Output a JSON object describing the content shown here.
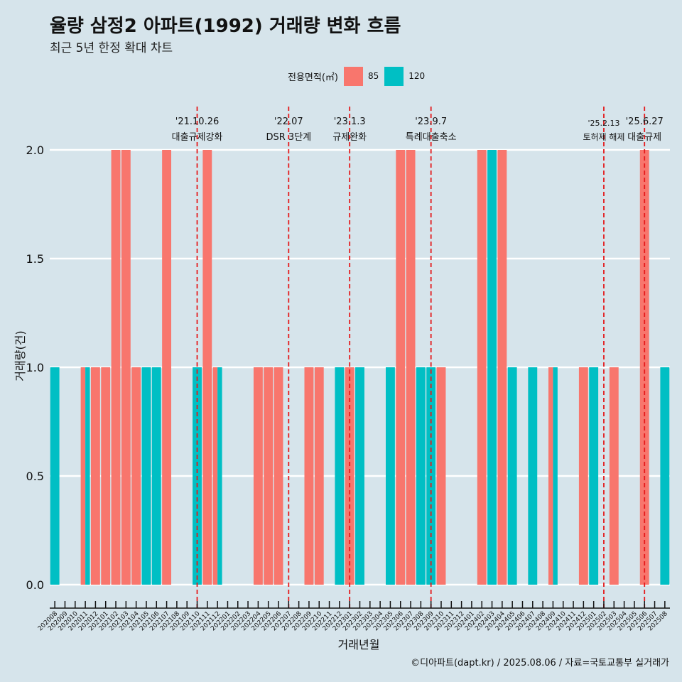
{
  "title": "율량 삼정2 아파트(1992) 거래량 변화 흐름",
  "subtitle": "최근 5년 한정 확대 차트",
  "caption": "©디아파트(dapt.kr) / 2025.08.06 / 자료=국토교통부 실거래가",
  "legend": {
    "title": "전용면적(㎡)",
    "items": [
      {
        "label": "85",
        "color": "#f8766d"
      },
      {
        "label": "120",
        "color": "#00bfc4"
      }
    ]
  },
  "chart_data": {
    "type": "bar",
    "xlabel": "거래년월",
    "ylabel": "거래량(건)",
    "ylim": [
      0,
      2
    ],
    "yticks": [
      "0.0",
      "0.5",
      "1.0",
      "1.5",
      "2.0"
    ],
    "categories": [
      "202008",
      "202009",
      "202010",
      "202011",
      "202012",
      "202101",
      "202102",
      "202103",
      "202104",
      "202105",
      "202106",
      "202107",
      "202108",
      "202109",
      "202110",
      "202111",
      "202112",
      "202201",
      "202202",
      "202203",
      "202204",
      "202205",
      "202206",
      "202207",
      "202208",
      "202209",
      "202210",
      "202211",
      "202212",
      "202301",
      "202302",
      "202303",
      "202304",
      "202305",
      "202306",
      "202307",
      "202308",
      "202309",
      "202310",
      "202311",
      "202312",
      "202401",
      "202402",
      "202403",
      "202404",
      "202405",
      "202406",
      "202407",
      "202408",
      "202409",
      "202410",
      "202411",
      "202412",
      "202501",
      "202502",
      "202503",
      "202504",
      "202505",
      "202506",
      "202507",
      "202508"
    ],
    "series": [
      {
        "name": "85",
        "color": "#f8766d",
        "values": [
          0,
          0,
          0,
          1,
          1,
          1,
          2,
          2,
          1,
          0,
          0,
          2,
          0,
          0,
          0,
          2,
          1,
          0,
          0,
          0,
          1,
          1,
          1,
          0,
          0,
          1,
          1,
          0,
          0,
          1,
          0,
          0,
          0,
          0,
          2,
          2,
          0,
          0,
          1,
          0,
          0,
          0,
          2,
          0,
          2,
          0,
          0,
          0,
          0,
          1,
          0,
          0,
          1,
          0,
          0,
          1,
          0,
          0,
          2,
          0,
          0
        ]
      },
      {
        "name": "120",
        "color": "#00bfc4",
        "values": [
          1,
          0,
          0,
          1,
          0,
          0,
          0,
          0,
          0,
          1,
          1,
          0,
          0,
          0,
          1,
          0,
          1,
          0,
          0,
          0,
          0,
          0,
          0,
          0,
          0,
          0,
          0,
          0,
          1,
          0,
          1,
          0,
          0,
          1,
          0,
          0,
          1,
          1,
          0,
          0,
          0,
          0,
          0,
          2,
          0,
          1,
          0,
          1,
          0,
          1,
          0,
          0,
          0,
          1,
          0,
          0,
          0,
          0,
          0,
          0,
          1
        ]
      }
    ],
    "annotations": [
      {
        "date": "'21.10.26",
        "text": "대출규제강화",
        "month": "202110",
        "offset": 0.0
      },
      {
        "date": "'22.07",
        "text": "DSR 3단계",
        "month": "202207",
        "offset": 0.0
      },
      {
        "date": "'23.1.3",
        "text": "규제완화",
        "month": "202301",
        "offset": 0.0
      },
      {
        "date": "'23.9.7",
        "text": "특례대출축소",
        "month": "202309",
        "offset": 0.0
      },
      {
        "date": "'25.2.13",
        "text": "토허제 해제",
        "month": "202502",
        "offset": 0.0
      },
      {
        "date": "'25.6.27",
        "text": "대출규제",
        "month": "202506",
        "offset": 0.0
      }
    ]
  }
}
